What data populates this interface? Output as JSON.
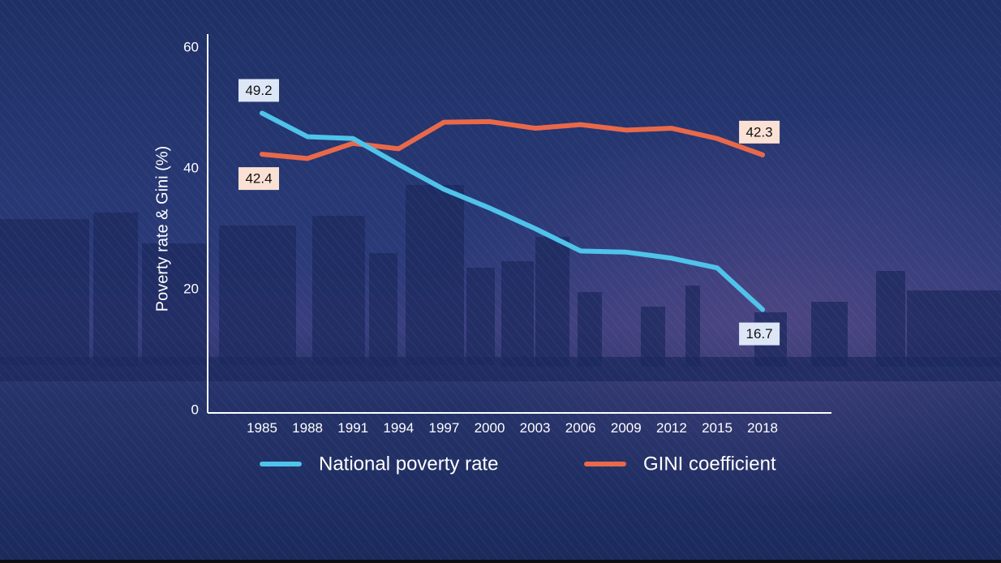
{
  "chart_data": {
    "type": "line",
    "title": "",
    "xlabel": "",
    "ylabel": "Poverty rate & Gini (%)",
    "categories": [
      "1985",
      "1988",
      "1991",
      "1994",
      "1997",
      "2000",
      "2003",
      "2006",
      "2009",
      "2012",
      "2015",
      "2018"
    ],
    "ylim": [
      0,
      60
    ],
    "yticks": [
      "0",
      "20",
      "40",
      "60"
    ],
    "grid": false,
    "legend_position": "bottom",
    "series": [
      {
        "name": "National poverty rate",
        "color": "#4fc3ea",
        "values": [
          49.2,
          45.3,
          45.0,
          40.7,
          36.6,
          33.5,
          30.1,
          26.4,
          26.2,
          25.2,
          23.6,
          16.7
        ]
      },
      {
        "name": "GINI coefficient",
        "color": "#e8694a",
        "values": [
          42.4,
          41.7,
          44.2,
          43.3,
          47.7,
          47.8,
          46.7,
          47.3,
          46.4,
          46.7,
          45.0,
          42.3
        ]
      }
    ],
    "data_labels": [
      {
        "series": 0,
        "index": 0,
        "text": "49.2",
        "bg": "#dde6f6",
        "place": "above"
      },
      {
        "series": 1,
        "index": 0,
        "text": "42.4",
        "bg": "#fbe1d4",
        "place": "below"
      },
      {
        "series": 1,
        "index": 11,
        "text": "42.3",
        "bg": "#fbe1d4",
        "place": "above"
      },
      {
        "series": 0,
        "index": 11,
        "text": "16.7",
        "bg": "#dde6f6",
        "place": "below"
      }
    ]
  }
}
